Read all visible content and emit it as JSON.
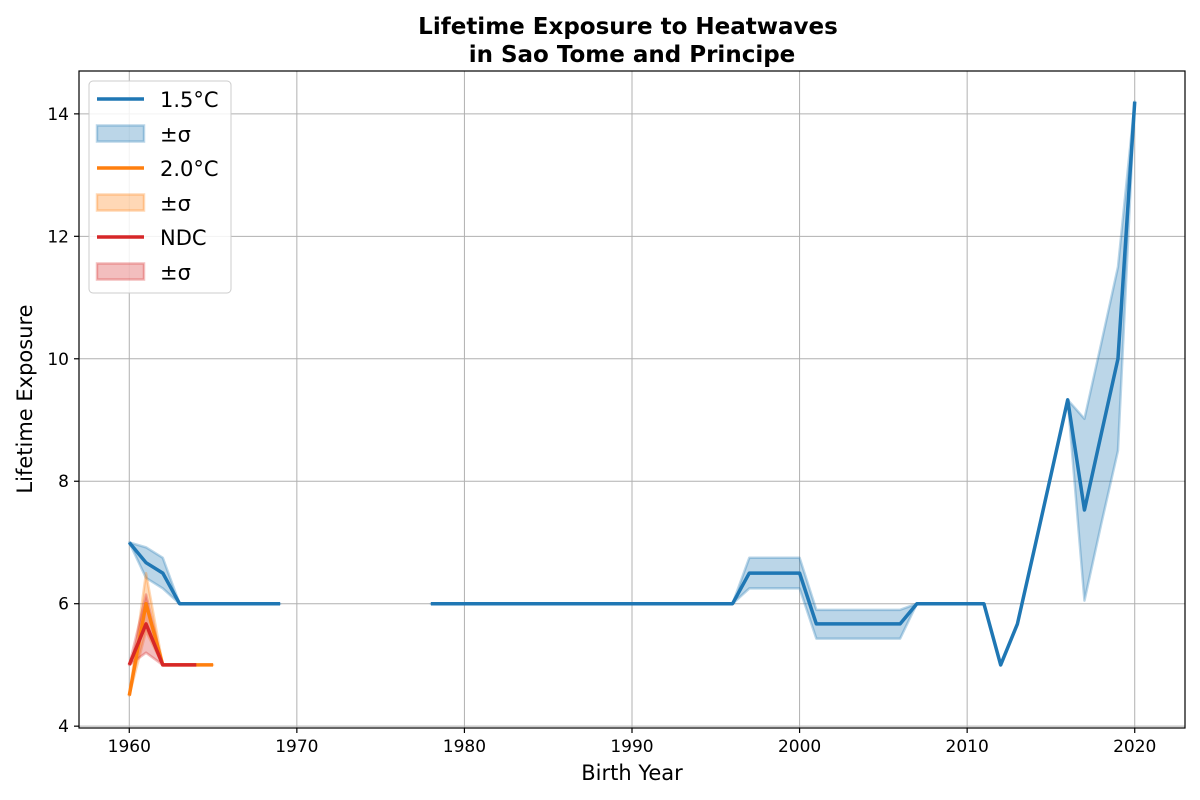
{
  "chart_data": {
    "type": "line",
    "title": [
      "Lifetime Exposure to Heatwaves",
      "in Sao Tome and Principe"
    ],
    "xlabel": "Birth Year",
    "ylabel": "Lifetime Exposure",
    "xlim": [
      1957,
      2023
    ],
    "ylim": [
      3.97,
      14.7
    ],
    "xticks": [
      1960,
      1970,
      1980,
      1990,
      2000,
      2010,
      2020
    ],
    "yticks": [
      4,
      6,
      8,
      10,
      12,
      14
    ],
    "grid": true,
    "legend_position": "top-left",
    "series": [
      {
        "name": "1.5°C",
        "band_label": "±σ",
        "color": "#1f77b4",
        "segments": [
          {
            "x": [
              1960,
              1961,
              1962,
              1963,
              1964,
              1965,
              1966,
              1967,
              1968,
              1969
            ],
            "y": [
              7.0,
              6.67,
              6.5,
              6.0,
              6.0,
              6.0,
              6.0,
              6.0,
              6.0,
              6.0
            ],
            "lower": [
              7.0,
              6.42,
              6.25,
              6.0,
              6.0,
              6.0,
              6.0,
              6.0,
              6.0,
              6.0
            ],
            "upper": [
              7.0,
              6.92,
              6.75,
              6.0,
              6.0,
              6.0,
              6.0,
              6.0,
              6.0,
              6.0
            ]
          },
          {
            "x": [
              1978,
              1979,
              1980,
              1981,
              1982,
              1983,
              1984,
              1985,
              1986,
              1987,
              1988,
              1989,
              1990,
              1991,
              1992,
              1993,
              1994,
              1995,
              1996,
              1997,
              1998,
              1999,
              2000,
              2001,
              2002,
              2003,
              2004,
              2005,
              2006,
              2007,
              2008,
              2009,
              2010,
              2011,
              2012,
              2013,
              2014,
              2015,
              2016,
              2017,
              2018,
              2019,
              2020
            ],
            "y": [
              6.0,
              6.0,
              6.0,
              6.0,
              6.0,
              6.0,
              6.0,
              6.0,
              6.0,
              6.0,
              6.0,
              6.0,
              6.0,
              6.0,
              6.0,
              6.0,
              6.0,
              6.0,
              6.0,
              6.5,
              6.5,
              6.5,
              6.5,
              5.67,
              5.67,
              5.67,
              5.67,
              5.67,
              5.67,
              6.0,
              6.0,
              6.0,
              6.0,
              6.0,
              5.0,
              5.67,
              6.88,
              8.1,
              9.33,
              7.53,
              8.77,
              10.0,
              14.2
            ],
            "lower": [
              6.0,
              6.0,
              6.0,
              6.0,
              6.0,
              6.0,
              6.0,
              6.0,
              6.0,
              6.0,
              6.0,
              6.0,
              6.0,
              6.0,
              6.0,
              6.0,
              6.0,
              6.0,
              6.0,
              6.25,
              6.25,
              6.25,
              6.25,
              5.43,
              5.43,
              5.43,
              5.43,
              5.43,
              5.43,
              6.0,
              6.0,
              6.0,
              6.0,
              6.0,
              5.0,
              5.67,
              6.88,
              8.1,
              9.33,
              6.05,
              7.3,
              8.5,
              14.2
            ],
            "upper": [
              6.0,
              6.0,
              6.0,
              6.0,
              6.0,
              6.0,
              6.0,
              6.0,
              6.0,
              6.0,
              6.0,
              6.0,
              6.0,
              6.0,
              6.0,
              6.0,
              6.0,
              6.0,
              6.0,
              6.75,
              6.75,
              6.75,
              6.75,
              5.9,
              5.9,
              5.9,
              5.9,
              5.9,
              5.9,
              6.0,
              6.0,
              6.0,
              6.0,
              6.0,
              5.0,
              5.67,
              6.88,
              8.1,
              9.33,
              9.02,
              10.25,
              11.5,
              14.2
            ]
          }
        ]
      },
      {
        "name": "2.0°C",
        "band_label": "±σ",
        "color": "#ff7f0e",
        "segments": [
          {
            "x": [
              1960,
              1961,
              1962,
              1963,
              1964,
              1965
            ],
            "y": [
              4.5,
              6.0,
              5.0,
              5.0,
              5.0,
              5.0
            ],
            "lower": [
              4.5,
              5.55,
              5.0,
              5.0,
              5.0,
              5.0
            ],
            "upper": [
              4.5,
              6.5,
              5.0,
              5.0,
              5.0,
              5.0
            ]
          }
        ]
      },
      {
        "name": "NDC",
        "band_label": "±σ",
        "color": "#d62728",
        "segments": [
          {
            "x": [
              1960,
              1961,
              1962,
              1963,
              1964
            ],
            "y": [
              5.0,
              5.67,
              5.0,
              5.0,
              5.0
            ],
            "lower": [
              5.0,
              5.2,
              5.0,
              5.0,
              5.0
            ],
            "upper": [
              5.0,
              6.15,
              5.0,
              5.0,
              5.0
            ]
          }
        ]
      }
    ]
  }
}
